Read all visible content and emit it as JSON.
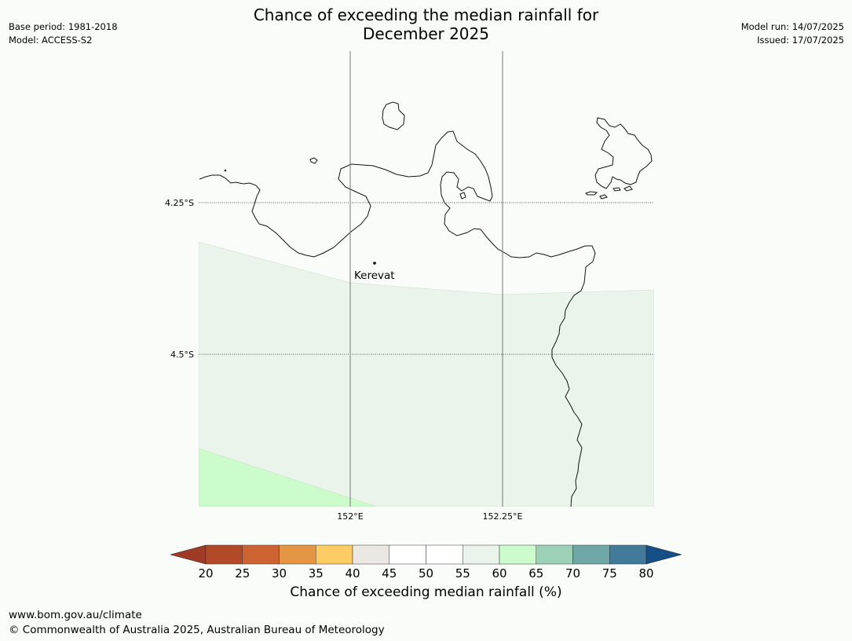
{
  "title": {
    "line1": "Chance of exceeding the median rainfall for",
    "line2": "December 2025"
  },
  "meta_left": {
    "base_period": "Base period: 1981-2018",
    "model": "Model: ACCESS-S2"
  },
  "meta_right": {
    "model_run": "Model run: 14/07/2025",
    "issued": "Issued: 17/07/2025"
  },
  "map": {
    "lat_labels": [
      "4.25°S",
      "4.5°S"
    ],
    "lon_labels": [
      "152°E",
      "152.25°E"
    ],
    "place_label": "Kerevat",
    "regions": [
      {
        "category": "55-60",
        "color": "#eaf4ea"
      },
      {
        "category": "60-65",
        "color": "#ccfccc"
      }
    ]
  },
  "colorbar": {
    "label": "Chance of exceeding median rainfall (%)",
    "ticks": [
      "20",
      "25",
      "30",
      "35",
      "40",
      "45",
      "50",
      "55",
      "60",
      "65",
      "70",
      "75",
      "80"
    ],
    "under_color": "#9e3a26",
    "over_color": "#164f87",
    "colors": [
      "#b24a27",
      "#cd6331",
      "#e59645",
      "#fdcc65",
      "#ebe8e3",
      "#ffffff",
      "#ffffff",
      "#eaf4ea",
      "#ccfccc",
      "#9dd1b7",
      "#6fa7a7",
      "#427a9a"
    ]
  },
  "footer": {
    "url": "www.bom.gov.au/climate",
    "copyright": "© Commonwealth of Australia 2025, Australian Bureau of Meteorology"
  }
}
